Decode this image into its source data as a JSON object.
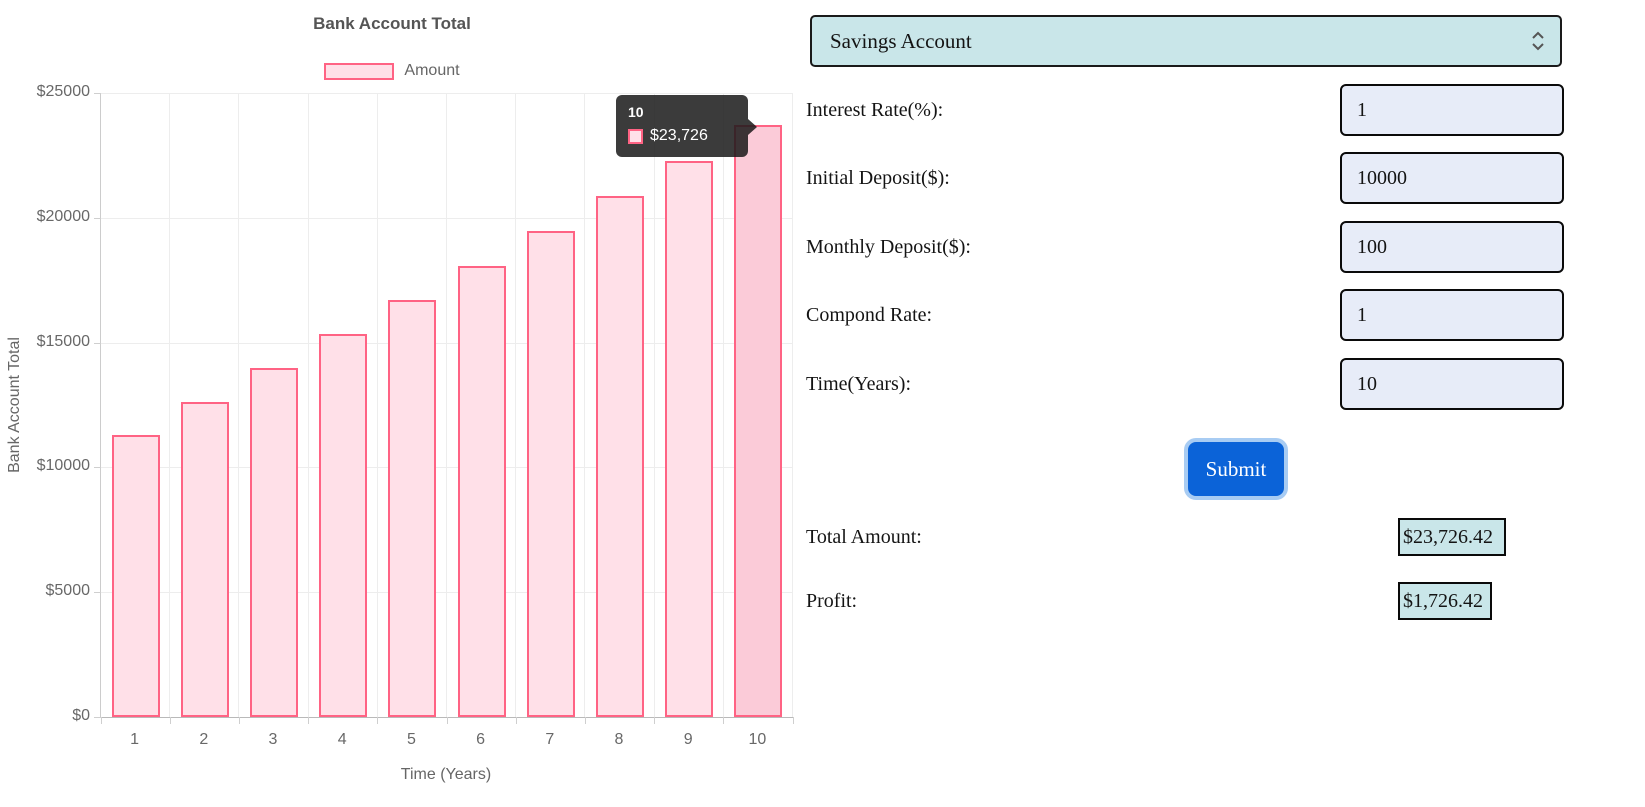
{
  "chart_data": {
    "type": "bar",
    "title": "Bank Account Total",
    "categories": [
      "1",
      "2",
      "3",
      "4",
      "5",
      "6",
      "7",
      "8",
      "9",
      "10"
    ],
    "series": [
      {
        "name": "Amount",
        "values": [
          11312.0,
          12637.12,
          13975.49,
          15327.25,
          16692.52,
          18071.45,
          19464.16,
          20870.8,
          22291.51,
          23726.42
        ]
      }
    ],
    "xlabel": "Time (Years)",
    "ylabel": "Bank Account Total",
    "ylim": [
      0,
      25000
    ],
    "ytick_step": 5000,
    "ytick_prefix": "$",
    "grid": true,
    "legend_position": "top",
    "bar_fill": "#FFE0E8",
    "bar_border": "#FF6384",
    "hover_fill": "#FBCBD8",
    "hovered_index": 9,
    "tooltip": {
      "title": "10",
      "value": "$23,726"
    }
  },
  "form": {
    "account_select": {
      "value": "Savings Account"
    },
    "fields": [
      {
        "label": "Interest Rate(%):",
        "value": "1"
      },
      {
        "label": "Initial Deposit($):",
        "value": "10000"
      },
      {
        "label": "Monthly Deposit($):",
        "value": "100"
      },
      {
        "label": "Compond Rate:",
        "value": "1"
      },
      {
        "label": "Time(Years):",
        "value": "10"
      }
    ],
    "submit_label": "Submit",
    "results": [
      {
        "label": "Total Amount:",
        "value": "$23,726.42"
      },
      {
        "label": "Profit:",
        "value": "$1,726.42"
      }
    ]
  },
  "icons": {
    "select_indicator": "up-down-chevrons"
  },
  "theme": {
    "select_bg": "#C9E6E9",
    "input_bg": "#E7ECF8",
    "result_box_bg": "#C9E6E9",
    "box_border": "#0A0A0A",
    "submit_bg": "#0B63D8",
    "submit_ring": "#A8CCF3",
    "submit_text": "#FFFFFF",
    "tooltip_bg": "#262626",
    "chart_text": "#666666",
    "grid_color": "#EDEDED"
  }
}
